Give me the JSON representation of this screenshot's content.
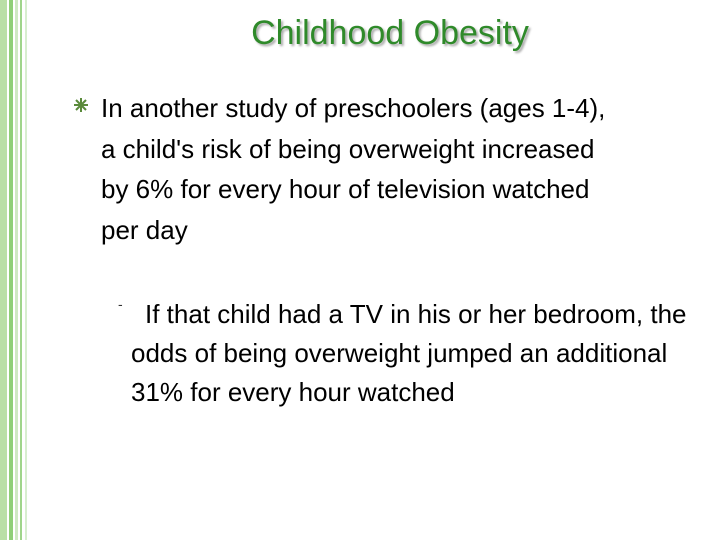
{
  "title": "Childhood Obesity",
  "bullets": [
    {
      "text": "In another study of preschoolers (ages 1-4), a child's risk of being overweight increased by 6% for every hour of television watched per day",
      "sub_bullets": [
        {
          "text": "If that child had a TV in his or her bedroom, the odds of being overweight jumped an additional 31% for every hour watched"
        }
      ]
    }
  ]
}
